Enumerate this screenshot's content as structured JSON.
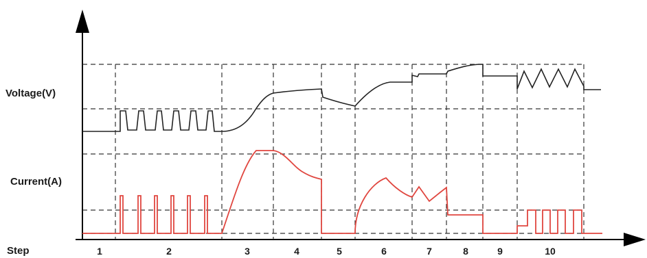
{
  "labels": {
    "voltage": "Voltage(V)",
    "current": "Current(A)",
    "step": "Step"
  },
  "steps": [
    "1",
    "2",
    "3",
    "4",
    "5",
    "6",
    "7",
    "8",
    "9",
    "10"
  ],
  "colors": {
    "voltage_trace": "#222222",
    "current_trace": "#e0463f",
    "grid": "#333333",
    "axis": "#000000"
  }
}
